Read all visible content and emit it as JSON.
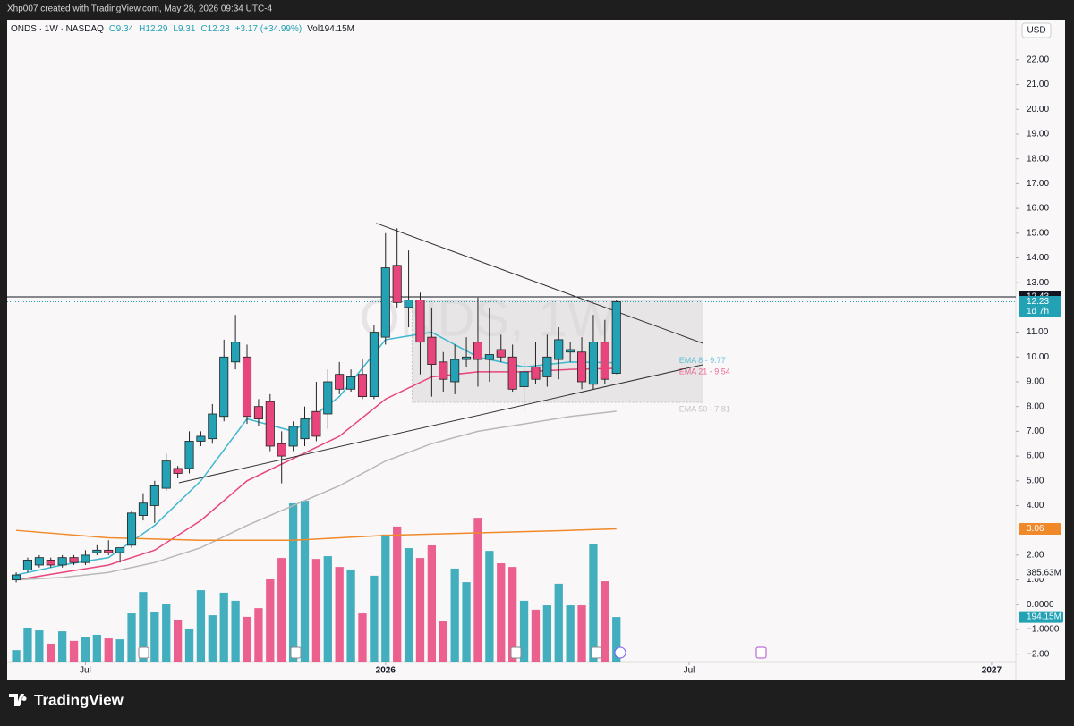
{
  "created_by": "Xhp007 created with TradingView.com, May 28, 2026 09:34 UTC-4",
  "brand": "TradingView",
  "chart_data": {
    "type": "candlestick",
    "title": "ONDS · 1W · NASDAQ",
    "header_items": [
      "O9.34",
      "H12.29",
      "L9.31",
      "C12.23",
      "+3.17 (+34.99%)",
      "Vol194.15M"
    ],
    "watermark": "ONDS, 1W",
    "currency": "USD",
    "up_color": "#22a2b4",
    "down_color": "#e8457c",
    "x": [
      0,
      1,
      2,
      3,
      4,
      5,
      6,
      7,
      8,
      9,
      10,
      11,
      12,
      13,
      14,
      15,
      16,
      17,
      18,
      19,
      20,
      21,
      22,
      23,
      24,
      25,
      26,
      27,
      28,
      29,
      30,
      31,
      32,
      33,
      34,
      35,
      36,
      37,
      38,
      39,
      40,
      41,
      42,
      43,
      44,
      45,
      46,
      47,
      48,
      49,
      50,
      51,
      52
    ],
    "open": [
      1.0,
      1.4,
      1.6,
      1.8,
      1.6,
      1.9,
      1.7,
      2.1,
      2.2,
      2.1,
      2.4,
      3.6,
      4.0,
      4.7,
      5.5,
      5.5,
      6.6,
      6.7,
      7.6,
      9.8,
      10.0,
      8.0,
      8.2,
      6.5,
      6.4,
      6.7,
      7.8,
      7.7,
      9.3,
      8.7,
      9.3,
      8.4,
      10.8,
      13.7,
      12.0,
      12.3,
      10.8,
      9.8,
      9.0,
      9.9,
      10.6,
      9.9,
      10.3,
      10.0,
      8.8,
      9.6,
      9.2,
      9.9,
      10.2,
      10.2,
      8.9,
      10.6,
      9.34
    ],
    "high": [
      1.3,
      1.9,
      2.0,
      1.9,
      2.0,
      2.0,
      2.2,
      2.4,
      2.6,
      2.3,
      3.8,
      4.5,
      5.0,
      6.1,
      5.6,
      7.0,
      7.0,
      8.1,
      10.7,
      11.7,
      10.5,
      8.3,
      8.5,
      7.0,
      7.4,
      8.0,
      9.0,
      9.5,
      9.8,
      9.5,
      9.9,
      11.3,
      15.0,
      15.2,
      14.3,
      12.6,
      12.0,
      10.2,
      10.5,
      10.8,
      12.4,
      12.0,
      10.9,
      10.5,
      9.8,
      10.6,
      10.9,
      11.2,
      10.6,
      10.8,
      11.7,
      11.5,
      12.29
    ],
    "low": [
      0.9,
      1.3,
      1.5,
      1.5,
      1.5,
      1.6,
      1.6,
      2.0,
      2.0,
      1.7,
      2.3,
      3.4,
      3.3,
      4.6,
      5.1,
      5.3,
      6.4,
      6.5,
      7.4,
      9.5,
      7.3,
      7.2,
      6.2,
      4.9,
      6.2,
      6.4,
      6.6,
      7.1,
      8.5,
      8.6,
      8.3,
      8.3,
      10.5,
      12.0,
      11.2,
      9.3,
      8.4,
      8.6,
      8.5,
      9.6,
      8.8,
      9.0,
      9.8,
      8.6,
      7.8,
      8.9,
      8.8,
      9.1,
      9.8,
      8.7,
      8.7,
      8.9,
      9.31
    ],
    "close": [
      1.2,
      1.8,
      1.9,
      1.6,
      1.9,
      1.7,
      2.0,
      2.2,
      2.1,
      2.3,
      3.7,
      4.1,
      4.8,
      5.8,
      5.3,
      6.6,
      6.8,
      7.7,
      10.0,
      10.6,
      7.6,
      7.5,
      6.4,
      6.0,
      7.2,
      7.5,
      6.8,
      9.0,
      8.7,
      9.2,
      8.4,
      11.0,
      13.6,
      12.2,
      12.3,
      10.6,
      9.7,
      9.1,
      9.9,
      10.0,
      9.9,
      10.1,
      10.0,
      8.7,
      9.4,
      9.1,
      10.0,
      10.7,
      10.3,
      9.0,
      10.6,
      9.1,
      12.23
    ],
    "volume": [
      50,
      148,
      136,
      78,
      132,
      90,
      105,
      117,
      101,
      97,
      210,
      303,
      218,
      249,
      179,
      144,
      311,
      202,
      300,
      265,
      195,
      233,
      358,
      451,
      689,
      700,
      447,
      459,
      412,
      401,
      210,
      374,
      553,
      588,
      494,
      451,
      506,
      175,
      405,
      346,
      626,
      482,
      428,
      412,
      265,
      226,
      245,
      339,
      245,
      245,
      510,
      350,
      194.15
    ],
    "vlim": [
      0,
      2794
    ],
    "xlim": [
      -0.78,
      86.6
    ],
    "xticks": [
      {
        "value": 6,
        "label": "Jul"
      },
      {
        "value": 32,
        "label": "2026"
      },
      {
        "value": 58.3,
        "label": "Jul"
      },
      {
        "value": 84.5,
        "label": "2027"
      }
    ],
    "ylim": [
      -2.3,
      23.62
    ],
    "yticks": [
      {
        "value": 22,
        "label": "22.00"
      },
      {
        "value": 21,
        "label": "21.00"
      },
      {
        "value": 20,
        "label": "20.00"
      },
      {
        "value": 19,
        "label": "19.00"
      },
      {
        "value": 18,
        "label": "18.00"
      },
      {
        "value": 17,
        "label": "17.00"
      },
      {
        "value": 16,
        "label": "16.00"
      },
      {
        "value": 15,
        "label": "15.00"
      },
      {
        "value": 14,
        "label": "14.00"
      },
      {
        "value": 13,
        "label": "13.00"
      },
      {
        "value": 11,
        "label": "11.00"
      },
      {
        "value": 10,
        "label": "10.00"
      },
      {
        "value": 9,
        "label": "9.00"
      },
      {
        "value": 8,
        "label": "8.00"
      },
      {
        "value": 7,
        "label": "7.00"
      },
      {
        "value": 6,
        "label": "6.00"
      },
      {
        "value": 5,
        "label": "5.00"
      },
      {
        "value": 4,
        "label": "4.00"
      },
      {
        "value": 2,
        "label": "2.00"
      },
      {
        "value": 1,
        "label": "1.00"
      },
      {
        "value": 0,
        "label": "0.0000"
      },
      {
        "value": -1,
        "label": "−1.0000"
      },
      {
        "value": -2,
        "label": "−2.00"
      }
    ],
    "lines": [
      {
        "label": "EMA 8 - 9.77",
        "color": "#3cb8d0",
        "x": [
          0,
          4,
          8,
          12,
          16,
          20,
          24,
          28,
          32,
          36,
          40,
          44,
          48,
          52
        ],
        "values": [
          1.2,
          1.6,
          1.9,
          3.2,
          5.0,
          7.5,
          7.0,
          8.4,
          10.7,
          11.0,
          10.0,
          9.6,
          9.8,
          9.77
        ]
      },
      {
        "label": "EMA 21 - 9.54",
        "color": "#e8457c",
        "x": [
          0,
          4,
          8,
          12,
          16,
          20,
          24,
          28,
          32,
          36,
          40,
          44,
          48,
          52
        ],
        "values": [
          1.0,
          1.3,
          1.6,
          2.2,
          3.4,
          5.0,
          5.9,
          6.8,
          8.3,
          9.2,
          9.4,
          9.4,
          9.5,
          9.54
        ]
      },
      {
        "label": "EMA 50 - 7.81",
        "color": "#b8b8b8",
        "x": [
          0,
          4,
          8,
          12,
          16,
          20,
          24,
          28,
          32,
          36,
          40,
          44,
          48,
          52
        ],
        "values": [
          1.0,
          1.1,
          1.3,
          1.7,
          2.3,
          3.2,
          4.0,
          4.8,
          5.8,
          6.5,
          7.0,
          7.3,
          7.6,
          7.81
        ]
      },
      {
        "color": "#f0892a",
        "x": [
          0,
          8,
          16,
          24,
          32,
          40,
          48,
          52
        ],
        "values": [
          3.0,
          2.7,
          2.6,
          2.6,
          2.8,
          2.9,
          3.0,
          3.06
        ]
      }
    ],
    "trendlines": [
      {
        "x": [
          31.2,
          59.5
        ],
        "y": [
          15.4,
          10.55
        ]
      },
      {
        "x": [
          14.1,
          59.5
        ],
        "y": [
          4.92,
          9.69
        ]
      }
    ],
    "range_box": {
      "x": [
        34.3,
        59.5
      ],
      "y": [
        8.17,
        12.29
      ]
    },
    "price_labels": [
      {
        "value": 12.43,
        "label": "12.43",
        "color": "#131722",
        "line": "solid"
      },
      {
        "value": 12.23,
        "label": "12.23",
        "sub": "1d 7h",
        "color": "#22a2b4",
        "line": "dotted"
      },
      {
        "value": 3.06,
        "label": "3.06",
        "color": "#f0892a"
      }
    ],
    "volume_labels": [
      {
        "value": 385.63,
        "label": "385.63M"
      },
      {
        "value": 194.15,
        "label": "194.15M",
        "color": "#22a2b4"
      }
    ]
  }
}
